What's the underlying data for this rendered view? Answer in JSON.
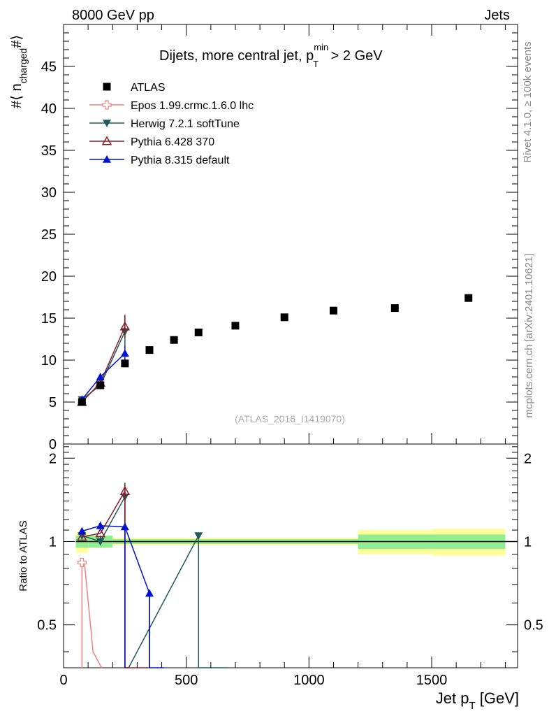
{
  "header": {
    "left": "8000 GeV pp",
    "right": "Jets"
  },
  "side_text": {
    "rivet": "Rivet 4.1.0, ≥ 100k events",
    "mcplots": "mcplots.cern.ch [arXiv:2401.10621]"
  },
  "chart_data": {
    "type": "scatter",
    "title": "Dijets, more central jet, p_T^min > 2 GeV",
    "title_parts": {
      "main": "Dijets, more central jet, p",
      "sup": "min",
      "sub": "T",
      "tail": " > 2 GeV"
    },
    "watermark": "(ATLAS_2016_I1419070)",
    "xlabel": "Jet p_T [GeV]",
    "xlabel_parts": {
      "main": "Jet p",
      "sub": "T",
      "tail": " [GeV]"
    },
    "ylabel": "#⟨ n_charged #⟩",
    "ylabel_parts": {
      "pre": "#⟨ n",
      "sub": "charged",
      "post": "#⟩"
    },
    "ratio_ylabel": "Ratio to ATLAS",
    "xlim": [
      0,
      1850
    ],
    "ylim": [
      0,
      50
    ],
    "ratio_ylim": [
      0.35,
      2.25
    ],
    "x_ticks": [
      0,
      500,
      1000,
      1500
    ],
    "x_tick_labels": [
      "0",
      "500",
      "1000",
      "1500"
    ],
    "y_ticks": [
      0,
      5,
      10,
      15,
      20,
      25,
      30,
      35,
      40,
      45
    ],
    "y_tick_labels": [
      "0",
      "5",
      "10",
      "15",
      "20",
      "25",
      "30",
      "35",
      "40",
      "45"
    ],
    "ratio_ticks": [
      0.5,
      1,
      2
    ],
    "ratio_tick_labels": [
      "0.5",
      "1",
      "2"
    ],
    "data": {
      "name": "ATLAS",
      "x": [
        75,
        150,
        250,
        350,
        450,
        550,
        700,
        900,
        1100,
        1350,
        1650
      ],
      "y": [
        5.0,
        7.0,
        9.6,
        11.2,
        12.4,
        13.3,
        14.1,
        15.1,
        15.9,
        16.2,
        17.4
      ],
      "x_low": [
        50,
        100,
        200,
        300,
        400,
        500,
        600,
        800,
        1000,
        1200,
        1500
      ],
      "x_high": [
        100,
        200,
        300,
        400,
        500,
        600,
        800,
        1000,
        1200,
        1500,
        1800
      ],
      "band_stat": [
        0.05,
        0.05,
        0.02,
        0.02,
        0.02,
        0.02,
        0.02,
        0.02,
        0.02,
        0.06,
        0.06
      ],
      "band_total": [
        0.09,
        0.05,
        0.03,
        0.03,
        0.03,
        0.03,
        0.03,
        0.03,
        0.03,
        0.1,
        0.11
      ]
    },
    "series": [
      {
        "name": "Epos 1.99.crmc.1.6.0 lhc",
        "color": "#f08080",
        "marker": "cross",
        "ratio_x": [
          75,
          75,
          75,
          85,
          120,
          155
        ],
        "ratio_y": [
          0.3,
          0.84,
          0.84,
          0.84,
          0.4,
          0.3
        ],
        "ratio_markers": [
          {
            "x": 75,
            "r": 0.84
          }
        ],
        "ratio_errbars": []
      },
      {
        "name": "Herwig 7.2.1 softTune",
        "color": "#1f5a5a",
        "marker": "triangle-down",
        "x": [
          75,
          150,
          250
        ],
        "y": [
          5.3,
          7.0,
          13.4
        ],
        "yerr": [
          0.2,
          0.3,
          1.9
        ],
        "ratio_x": [
          75,
          150,
          250,
          250,
          255,
          265,
          550,
          550,
          665,
          670
        ],
        "ratio_y": [
          1.05,
          1.0,
          1.45,
          0.3,
          0.3,
          0.3,
          1.05,
          0.3,
          0.3,
          0.3
        ],
        "ratio_markers": [
          {
            "x": 75,
            "r": 1.05
          },
          {
            "x": 150,
            "r": 1.0
          },
          {
            "x": 250,
            "r": 1.45
          },
          {
            "x": 550,
            "r": 1.05
          }
        ],
        "ratio_errbars": [
          {
            "x": 150,
            "lo": 0.97,
            "hi": 1.05
          },
          {
            "x": 250,
            "lo": 0.3,
            "hi": 1.63
          },
          {
            "x": 550,
            "lo": 0.3,
            "hi": 1.05
          }
        ]
      },
      {
        "name": "Pythia 6.428 370",
        "color": "#8b1a2b",
        "marker": "triangle-up-open",
        "x": [
          75,
          150,
          250
        ],
        "y": [
          5.0,
          7.3,
          14.0
        ],
        "yerr": [
          0.2,
          0.3,
          1.4
        ],
        "ratio_x": [
          75,
          150,
          250,
          250,
          340,
          345
        ],
        "ratio_y": [
          1.04,
          1.07,
          1.52,
          0.3,
          0.3,
          0.3
        ],
        "ratio_markers": [
          {
            "x": 75,
            "r": 1.04
          },
          {
            "x": 150,
            "r": 1.07
          },
          {
            "x": 250,
            "r": 1.52
          }
        ],
        "ratio_errbars": [
          {
            "x": 250,
            "lo": 0.3,
            "hi": 1.6
          }
        ]
      },
      {
        "name": "Pythia 8.315 default",
        "color": "#0010d0",
        "marker": "triangle-up",
        "x": [
          75,
          150,
          250
        ],
        "y": [
          5.3,
          8.0,
          10.8
        ],
        "yerr": [
          0.2,
          0.3,
          0.9
        ],
        "ratio_x": [
          75,
          150,
          250,
          350,
          350,
          400,
          410
        ],
        "ratio_y": [
          1.09,
          1.14,
          1.13,
          0.65,
          0.3,
          0.3,
          0.3
        ],
        "ratio_markers": [
          {
            "x": 75,
            "r": 1.09
          },
          {
            "x": 150,
            "r": 1.14
          },
          {
            "x": 250,
            "r": 1.13
          },
          {
            "x": 350,
            "r": 0.65
          }
        ],
        "ratio_errbars": [
          {
            "x": 150,
            "lo": 1.1,
            "hi": 1.18
          },
          {
            "x": 250,
            "lo": 0.3,
            "hi": 1.17
          },
          {
            "x": 350,
            "lo": 0.3,
            "hi": 0.65
          }
        ]
      }
    ]
  }
}
